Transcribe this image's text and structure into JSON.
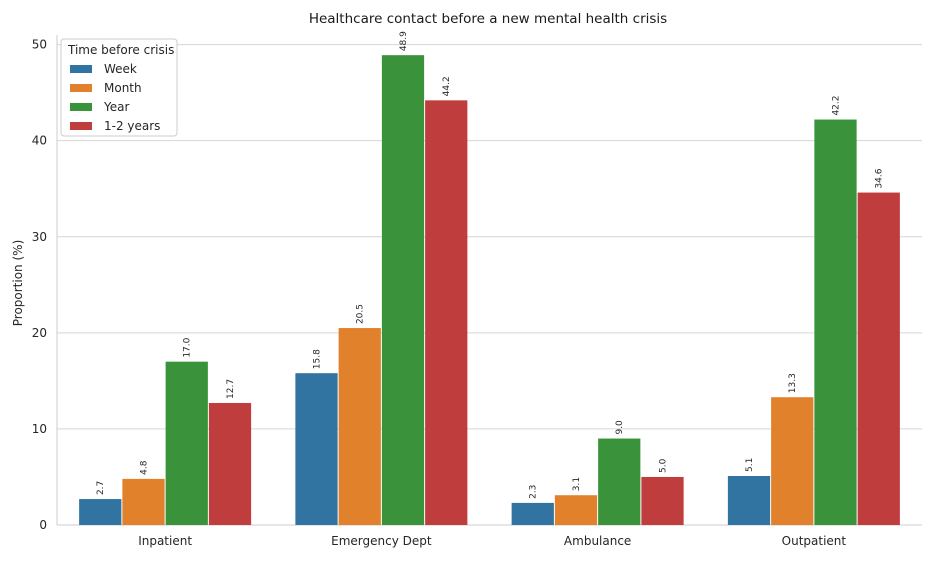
{
  "chart_data": {
    "type": "bar",
    "title": "Healthcare contact before a new mental health crisis",
    "xlabel": "",
    "ylabel": "Proportion (%)",
    "ylim": [
      0,
      51
    ],
    "yticks": [
      0,
      10,
      20,
      30,
      40,
      50
    ],
    "grid": true,
    "legend": {
      "title": "Time before crisis",
      "placement": "top-left"
    },
    "categories": [
      "Inpatient",
      "Emergency Dept",
      "Ambulance",
      "Outpatient"
    ],
    "series": [
      {
        "name": "Week",
        "color": "#3274a1",
        "values": [
          2.7,
          15.8,
          2.3,
          5.1
        ]
      },
      {
        "name": "Month",
        "color": "#e1812c",
        "values": [
          4.8,
          20.5,
          3.1,
          13.3
        ]
      },
      {
        "name": "Year",
        "color": "#3a923a",
        "values": [
          17.0,
          48.9,
          9.0,
          42.2
        ]
      },
      {
        "name": "1-2 years",
        "color": "#c03d3e",
        "values": [
          12.7,
          44.2,
          5.0,
          34.6
        ]
      }
    ],
    "value_label_format": "one-decimal"
  }
}
